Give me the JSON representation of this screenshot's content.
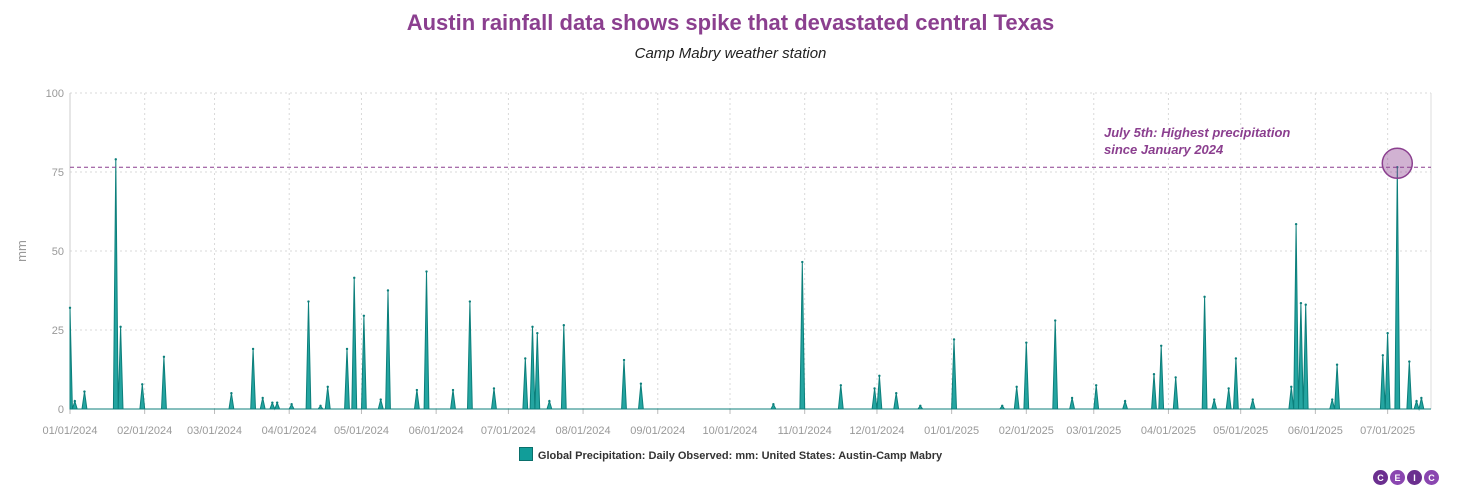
{
  "colors": {
    "accent": "#8b3f8f",
    "series": "#119d99",
    "grid": "#d9d9d9"
  },
  "logo": [
    "C",
    "E",
    "I",
    "C"
  ],
  "chart_data": {
    "type": "area",
    "title": "Austin rainfall data shows spike that devastated central Texas",
    "subtitle": "Camp Mabry weather station",
    "ylabel": "mm",
    "xlabel": "",
    "ylim": [
      0,
      100
    ],
    "xlim": [
      "2024-01-01",
      "2025-07-19"
    ],
    "yticks": [
      "0",
      "25",
      "50",
      "75",
      "100"
    ],
    "xticks": [
      {
        "date": "2024-01-01",
        "label": "01/01/2024"
      },
      {
        "date": "2024-02-01",
        "label": "02/01/2024"
      },
      {
        "date": "2024-03-01",
        "label": "03/01/2024"
      },
      {
        "date": "2024-04-01",
        "label": "04/01/2024"
      },
      {
        "date": "2024-05-01",
        "label": "05/01/2024"
      },
      {
        "date": "2024-06-01",
        "label": "06/01/2024"
      },
      {
        "date": "2024-07-01",
        "label": "07/01/2024"
      },
      {
        "date": "2024-08-01",
        "label": "08/01/2024"
      },
      {
        "date": "2024-09-01",
        "label": "09/01/2024"
      },
      {
        "date": "2024-10-01",
        "label": "10/01/2024"
      },
      {
        "date": "2024-11-01",
        "label": "11/01/2024"
      },
      {
        "date": "2024-12-01",
        "label": "12/01/2024"
      },
      {
        "date": "2025-01-01",
        "label": "01/01/2025"
      },
      {
        "date": "2025-02-01",
        "label": "02/01/2025"
      },
      {
        "date": "2025-03-01",
        "label": "03/01/2025"
      },
      {
        "date": "2025-04-01",
        "label": "04/01/2025"
      },
      {
        "date": "2025-05-01",
        "label": "05/01/2025"
      },
      {
        "date": "2025-06-01",
        "label": "06/01/2025"
      },
      {
        "date": "2025-07-01",
        "label": "07/01/2025"
      }
    ],
    "grid": true,
    "legend_position": "bottom-center",
    "series": [
      {
        "name": "Global Precipitation: Daily Observed: mm: United States: Austin-Camp Mabry",
        "points": [
          [
            "2024-01-01",
            32
          ],
          [
            "2024-01-03",
            2.5
          ],
          [
            "2024-01-07",
            5.5
          ],
          [
            "2024-01-20",
            79
          ],
          [
            "2024-01-22",
            26
          ],
          [
            "2024-01-31",
            7.8
          ],
          [
            "2024-02-09",
            16.5
          ],
          [
            "2024-03-08",
            5
          ],
          [
            "2024-03-17",
            19
          ],
          [
            "2024-03-21",
            3.5
          ],
          [
            "2024-03-25",
            2
          ],
          [
            "2024-03-27",
            2
          ],
          [
            "2024-04-02",
            1.5
          ],
          [
            "2024-04-09",
            34
          ],
          [
            "2024-04-14",
            1
          ],
          [
            "2024-04-17",
            7
          ],
          [
            "2024-04-25",
            19
          ],
          [
            "2024-04-28",
            41.5
          ],
          [
            "2024-05-02",
            29.5
          ],
          [
            "2024-05-09",
            3
          ],
          [
            "2024-05-12",
            37.5
          ],
          [
            "2024-05-24",
            6
          ],
          [
            "2024-05-28",
            43.5
          ],
          [
            "2024-06-08",
            6
          ],
          [
            "2024-06-15",
            34
          ],
          [
            "2024-06-25",
            6.5
          ],
          [
            "2024-07-08",
            16
          ],
          [
            "2024-07-11",
            26
          ],
          [
            "2024-07-13",
            24
          ],
          [
            "2024-07-18",
            2.5
          ],
          [
            "2024-07-24",
            26.5
          ],
          [
            "2024-08-18",
            15.5
          ],
          [
            "2024-08-25",
            8
          ],
          [
            "2024-10-19",
            1.5
          ],
          [
            "2024-10-31",
            46.5
          ],
          [
            "2024-11-16",
            7.5
          ],
          [
            "2024-11-30",
            6.5
          ],
          [
            "2024-12-02",
            10.5
          ],
          [
            "2024-12-09",
            5
          ],
          [
            "2024-12-19",
            1
          ],
          [
            "2025-01-02",
            22
          ],
          [
            "2025-01-22",
            1
          ],
          [
            "2025-01-28",
            7
          ],
          [
            "2025-02-01",
            21
          ],
          [
            "2025-02-13",
            28
          ],
          [
            "2025-02-20",
            3.5
          ],
          [
            "2025-03-02",
            7.5
          ],
          [
            "2025-03-14",
            2.5
          ],
          [
            "2025-03-26",
            11
          ],
          [
            "2025-03-29",
            20
          ],
          [
            "2025-04-04",
            10
          ],
          [
            "2025-04-16",
            35.5
          ],
          [
            "2025-04-20",
            3
          ],
          [
            "2025-04-26",
            6.5
          ],
          [
            "2025-04-29",
            16
          ],
          [
            "2025-05-06",
            3
          ],
          [
            "2025-05-22",
            7
          ],
          [
            "2025-05-24",
            58.5
          ],
          [
            "2025-05-26",
            33.5
          ],
          [
            "2025-05-28",
            33
          ],
          [
            "2025-06-08",
            3
          ],
          [
            "2025-06-10",
            14
          ],
          [
            "2025-06-29",
            17
          ],
          [
            "2025-07-01",
            24
          ],
          [
            "2025-07-05",
            76.5
          ],
          [
            "2025-07-10",
            15
          ],
          [
            "2025-07-13",
            2.5
          ],
          [
            "2025-07-15",
            3.5
          ]
        ]
      }
    ],
    "reference_line": {
      "y": 76.5
    },
    "highlight_point": {
      "date": "2025-07-05",
      "value": 76.5
    },
    "annotation": "July 5th: Highest precipitation since January 2024"
  }
}
